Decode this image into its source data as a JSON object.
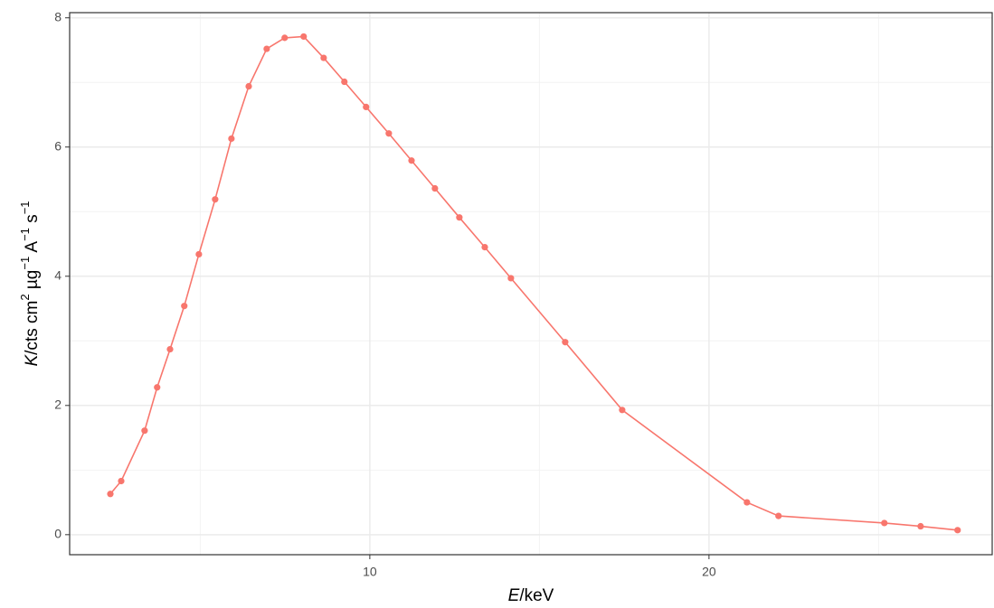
{
  "chart_data": {
    "type": "line",
    "xlabel": [
      {
        "text": "E",
        "italic": true
      },
      {
        "text": "/keV"
      }
    ],
    "ylabel": [
      {
        "text": "K",
        "italic": true
      },
      {
        "text": "/cts cm"
      },
      {
        "text": "2",
        "sup": true
      },
      {
        "text": " µg"
      },
      {
        "text": "−1",
        "sup": true
      },
      {
        "text": " A"
      },
      {
        "text": "−1",
        "sup": true
      },
      {
        "text": " s"
      },
      {
        "text": "−1",
        "sup": true
      }
    ],
    "series": [
      {
        "color": "#F8766D",
        "x": [
          2.35,
          2.67,
          3.36,
          3.73,
          4.11,
          4.53,
          4.96,
          5.44,
          5.92,
          6.43,
          6.96,
          7.49,
          8.05,
          8.64,
          9.25,
          9.89,
          10.56,
          11.23,
          11.92,
          12.64,
          13.39,
          14.16,
          15.76,
          17.44,
          21.12,
          22.05,
          25.17,
          26.24,
          27.33
        ],
        "values": [
          0.63,
          0.83,
          1.61,
          2.28,
          2.87,
          3.54,
          4.34,
          5.19,
          6.13,
          6.94,
          7.52,
          7.69,
          7.71,
          7.38,
          7.01,
          6.62,
          6.21,
          5.79,
          5.36,
          4.91,
          4.45,
          3.97,
          2.98,
          1.93,
          0.5,
          0.29,
          0.18,
          0.13,
          0.07
        ]
      }
    ],
    "xlim": [
      1.15,
      28.35
    ],
    "ylim": [
      -0.31,
      8.08
    ],
    "xticks": [
      10,
      20
    ],
    "yticks": [
      0,
      2,
      4,
      6,
      8
    ],
    "xminor": [
      5,
      15,
      25
    ],
    "yminor": [
      1,
      3,
      5,
      7
    ],
    "grid": true
  }
}
